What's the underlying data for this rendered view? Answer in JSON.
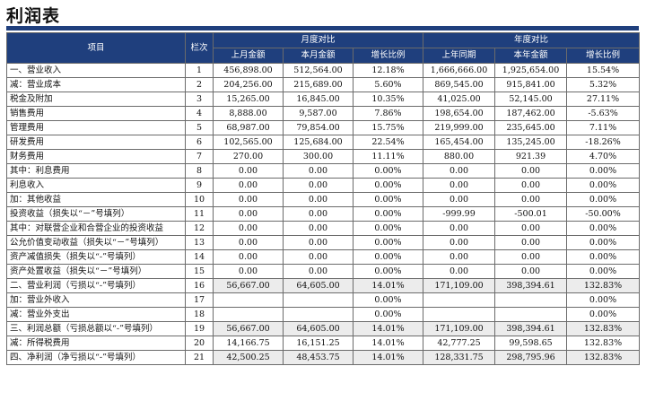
{
  "page": {
    "title": "利润表"
  },
  "table": {
    "header": {
      "item": "项目",
      "line": "栏次",
      "monthly_group": "月度对比",
      "yearly_group": "年度对比",
      "columns": [
        "上月金额",
        "本月金额",
        "增长比例",
        "上年同期",
        "本年金额",
        "增长比例"
      ]
    },
    "rows": [
      {
        "label": "一、营业收入",
        "line": "1",
        "values": [
          "456,898.00",
          "512,564.00",
          "12.18%",
          "1,666,666.00",
          "1,925,654.00",
          "15.54%"
        ]
      },
      {
        "label": "减：营业成本",
        "line": "2",
        "values": [
          "204,256.00",
          "215,689.00",
          "5.60%",
          "869,545.00",
          "915,841.00",
          "5.32%"
        ]
      },
      {
        "label": "税金及附加",
        "line": "3",
        "values": [
          "15,265.00",
          "16,845.00",
          "10.35%",
          "41,025.00",
          "52,145.00",
          "27.11%"
        ]
      },
      {
        "label": "销售费用",
        "line": "4",
        "values": [
          "8,888.00",
          "9,587.00",
          "7.86%",
          "198,654.00",
          "187,462.00",
          "-5.63%"
        ]
      },
      {
        "label": "管理费用",
        "line": "5",
        "values": [
          "68,987.00",
          "79,854.00",
          "15.75%",
          "219,999.00",
          "235,645.00",
          "7.11%"
        ]
      },
      {
        "label": "研发费用",
        "line": "6",
        "values": [
          "102,565.00",
          "125,684.00",
          "22.54%",
          "165,454.00",
          "135,245.00",
          "-18.26%"
        ]
      },
      {
        "label": "财务费用",
        "line": "7",
        "values": [
          "270.00",
          "300.00",
          "11.11%",
          "880.00",
          "921.39",
          "4.70%"
        ]
      },
      {
        "label": "其中：利息费用",
        "line": "8",
        "values": [
          "0.00",
          "0.00",
          "0.00%",
          "0.00",
          "0.00",
          "0.00%"
        ]
      },
      {
        "label": "利息收入",
        "line": "9",
        "values": [
          "0.00",
          "0.00",
          "0.00%",
          "0.00",
          "0.00",
          "0.00%"
        ]
      },
      {
        "label": "加：其他收益",
        "line": "10",
        "values": [
          "0.00",
          "0.00",
          "0.00%",
          "0.00",
          "0.00",
          "0.00%"
        ]
      },
      {
        "label": "投资收益（损失以“－”号填列）",
        "line": "11",
        "values": [
          "0.00",
          "0.00",
          "0.00%",
          "-999.99",
          "-500.01",
          "-50.00%"
        ]
      },
      {
        "label": "其中：对联营企业和合营企业的投资收益",
        "line": "12",
        "values": [
          "0.00",
          "0.00",
          "0.00%",
          "0.00",
          "0.00",
          "0.00%"
        ]
      },
      {
        "label": "公允价值变动收益（损失以“－”号填列）",
        "line": "13",
        "values": [
          "0.00",
          "0.00",
          "0.00%",
          "0.00",
          "0.00",
          "0.00%"
        ]
      },
      {
        "label": "资产减值损失（损失以“-”号填列）",
        "line": "14",
        "values": [
          "0.00",
          "0.00",
          "0.00%",
          "0.00",
          "0.00",
          "0.00%"
        ]
      },
      {
        "label": "资产处置收益（损失以“－”号填列）",
        "line": "15",
        "values": [
          "0.00",
          "0.00",
          "0.00%",
          "0.00",
          "0.00",
          "0.00%"
        ]
      },
      {
        "label": "二、营业利润（亏损以“-”号填列）",
        "line": "16",
        "sub": true,
        "values": [
          "56,667.00",
          "64,605.00",
          "14.01%",
          "171,109.00",
          "398,394.61",
          "132.83%"
        ]
      },
      {
        "label": "加：营业外收入",
        "line": "17",
        "values": [
          "",
          "",
          "0.00%",
          "",
          "",
          "0.00%"
        ]
      },
      {
        "label": "减：营业外支出",
        "line": "18",
        "values": [
          "",
          "",
          "0.00%",
          "",
          "",
          "0.00%"
        ]
      },
      {
        "label": "三、利润总额（亏损总额以“-”号填列）",
        "line": "19",
        "sub": true,
        "values": [
          "56,667.00",
          "64,605.00",
          "14.01%",
          "171,109.00",
          "398,394.61",
          "132.83%"
        ]
      },
      {
        "label": "减：所得税费用",
        "line": "20",
        "values": [
          "14,166.75",
          "16,151.25",
          "14.01%",
          "42,777.25",
          "99,598.65",
          "132.83%"
        ]
      },
      {
        "label": "四、净利润（净亏损以“-”号填列）",
        "line": "21",
        "sub": true,
        "values": [
          "42,500.25",
          "48,453.75",
          "14.01%",
          "128,331.75",
          "298,795.96",
          "132.83%"
        ]
      }
    ]
  },
  "colors": {
    "header_bg": "#1f3f7d",
    "header_text": "#ffffff",
    "subtotal_bg": "#ececec",
    "grid": "#6b6b6b"
  }
}
